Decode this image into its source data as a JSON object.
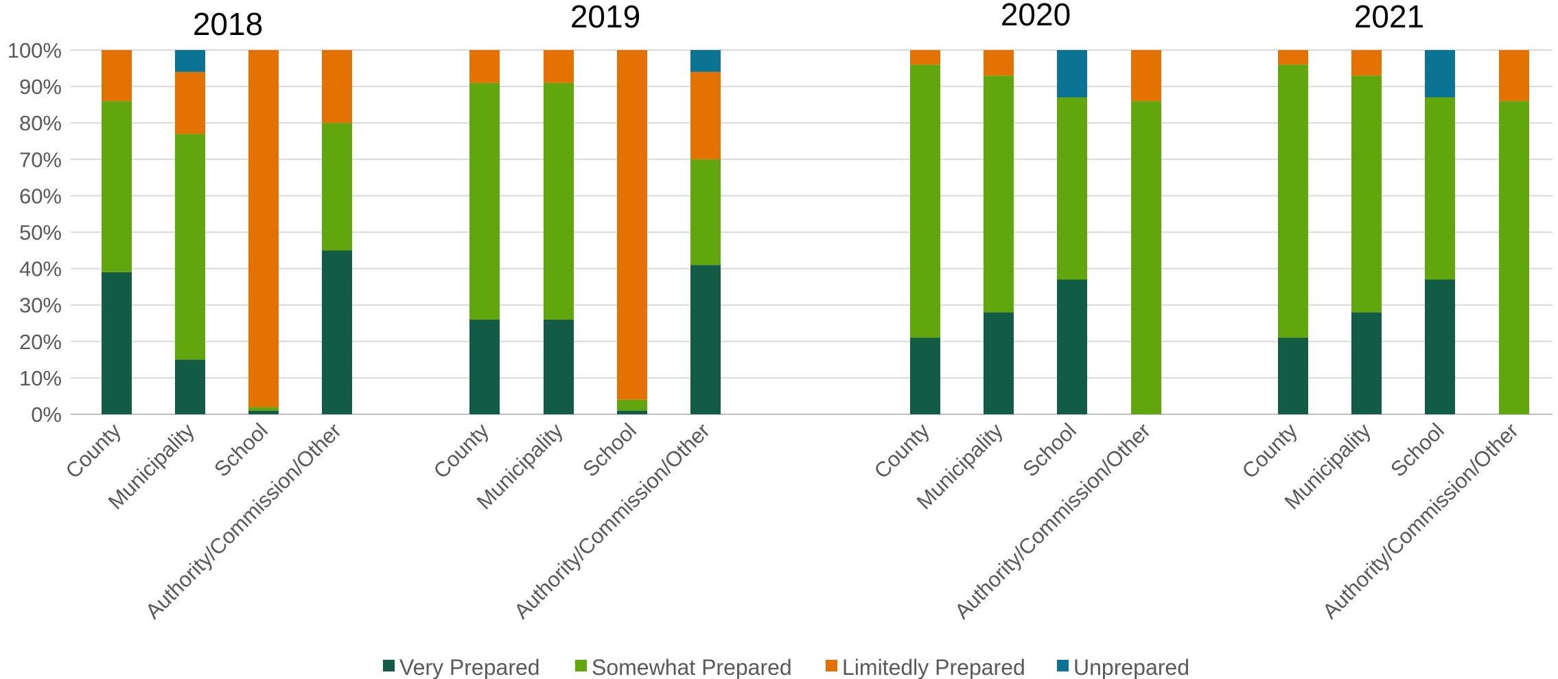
{
  "chart_data": {
    "type": "bar",
    "stacked": true,
    "stack_mode": "percent",
    "y_ticks": [
      "0%",
      "10%",
      "20%",
      "30%",
      "40%",
      "50%",
      "60%",
      "70%",
      "80%",
      "90%",
      "100%"
    ],
    "ylim": [
      0,
      100
    ],
    "grid": true,
    "legend_position": "bottom",
    "series": [
      {
        "name": "Very Prepared",
        "color": "#125b44"
      },
      {
        "name": "Somewhat Prepared",
        "color": "#62a60e"
      },
      {
        "name": "Limitedly Prepared",
        "color": "#e47203"
      },
      {
        "name": "Unprepared",
        "color": "#0b7494"
      }
    ],
    "groups": [
      {
        "title": "2018",
        "categories": [
          "County",
          "Municipality",
          "School",
          "Authority/Commission/Other"
        ],
        "values": [
          [
            39,
            47,
            14,
            0
          ],
          [
            15,
            62,
            17,
            6
          ],
          [
            1,
            1,
            98,
            0
          ],
          [
            45,
            35,
            20,
            0
          ]
        ]
      },
      {
        "title": "2019",
        "categories": [
          "County",
          "Municipality",
          "School",
          "Authority/Commission/Other"
        ],
        "values": [
          [
            26,
            65,
            9,
            0
          ],
          [
            26,
            65,
            9,
            0
          ],
          [
            1,
            3,
            96,
            0
          ],
          [
            41,
            29,
            24,
            6
          ]
        ]
      },
      {
        "title": "2020",
        "categories": [
          "County",
          "Municipality",
          "School",
          "Authority/Commission/Other"
        ],
        "values": [
          [
            21,
            75,
            4,
            0
          ],
          [
            28,
            65,
            7,
            0
          ],
          [
            37,
            50,
            0,
            13
          ],
          [
            0,
            86,
            14,
            0
          ]
        ]
      },
      {
        "title": "2021",
        "categories": [
          "County",
          "Municipality",
          "School",
          "Authority/Commission/Other"
        ],
        "values": [
          [
            21,
            75,
            4,
            0
          ],
          [
            28,
            65,
            7,
            0
          ],
          [
            37,
            50,
            0,
            13
          ],
          [
            0,
            86,
            14,
            0
          ]
        ]
      }
    ]
  }
}
